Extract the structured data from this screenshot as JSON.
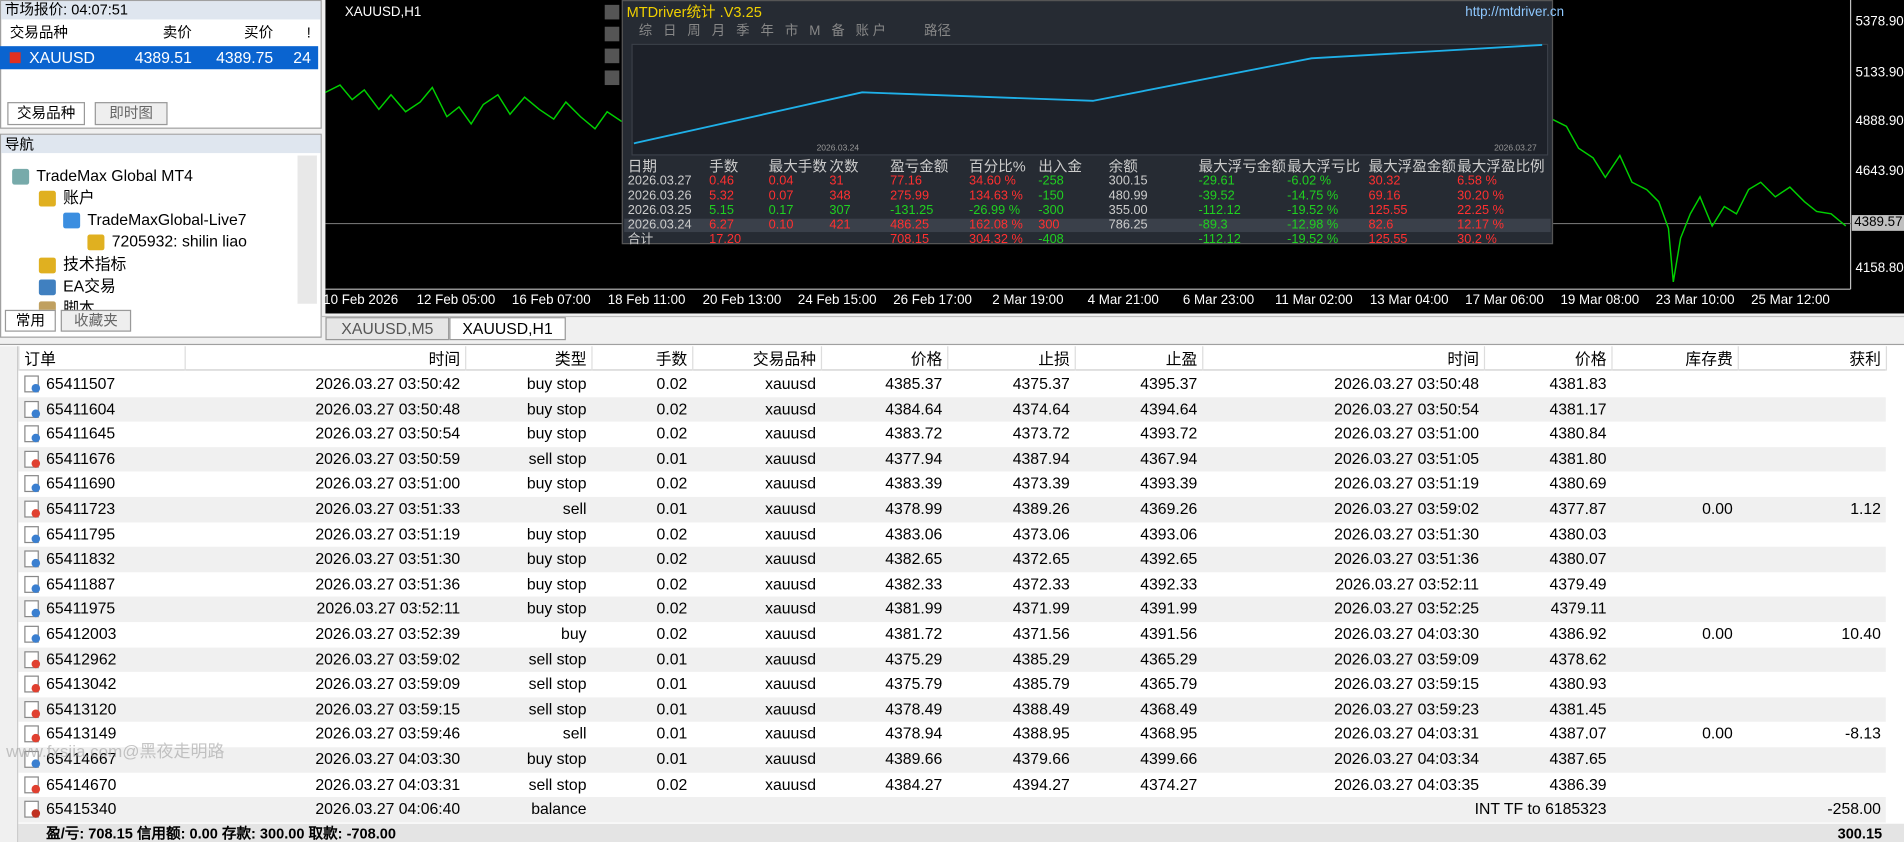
{
  "market_watch": {
    "title": "市场报价: 04:07:51",
    "headers": [
      "交易品种",
      "卖价",
      "买价",
      "!"
    ],
    "row": [
      "XAUUSD",
      "4389.51",
      "4389.75",
      "24"
    ],
    "tabs": [
      "交易品种",
      "即时图"
    ]
  },
  "navigator": {
    "title": "导航",
    "items": [
      "TradeMax Global MT4",
      "账户",
      "TradeMaxGlobal-Live7",
      "7205932: shilin liao",
      "技术指标",
      "EA交易",
      "脚本"
    ],
    "tabs": [
      "常用",
      "收藏夹"
    ]
  },
  "chart": {
    "title": "XAUUSD,H1",
    "price_labels": [
      "5378.90",
      "5133.90",
      "4888.90",
      "4643.90",
      "4158.80"
    ],
    "current_price": "4389.57",
    "time_labels": [
      "10 Feb 2026",
      "12 Feb 05:00",
      "16 Feb 07:00",
      "18 Feb 11:00",
      "20 Feb 13:00",
      "24 Feb 15:00",
      "26 Feb 17:00",
      "2 Mar 19:00",
      "4 Mar 21:00",
      "6 Mar 23:00",
      "11 Mar 02:00",
      "13 Mar 04:00",
      "17 Mar 06:00",
      "19 Mar 08:00",
      "23 Mar 10:00",
      "25 Mar 12:00"
    ],
    "tabs": [
      "XAUUSD,M5",
      "XAUUSD,H1"
    ]
  },
  "stats_panel": {
    "title": "MTDriver统计 .V3.25",
    "url": "http://mtdriver.cn",
    "menu": "综 日 周 月 季 年 市 M 备 账户",
    "path_label": "路径",
    "graph_dates": [
      "2026.03.24",
      "2026.03.27"
    ],
    "headers": [
      "日期",
      "手数",
      "最大手数",
      "次数",
      "盈亏金额",
      "百分比%",
      "出入金",
      "余额",
      "最大浮亏金额",
      "最大浮亏比",
      "最大浮盈金额",
      "最大浮盈比例"
    ],
    "rows": [
      [
        "2026.03.27",
        "0.46",
        "0.04",
        "31",
        "77.16",
        "34.60 %",
        "-258",
        "300.15",
        "-29.61",
        "-6.02 %",
        "30.32",
        "6.58 %"
      ],
      [
        "2026.03.26",
        "5.32",
        "0.07",
        "348",
        "275.99",
        "134.63 %",
        "-150",
        "480.99",
        "-39.52",
        "-14.75 %",
        "69.16",
        "30.20 %"
      ],
      [
        "2026.03.25",
        "5.15",
        "0.17",
        "307",
        "-131.25",
        "-26.99 %",
        "-300",
        "355.00",
        "-112.12",
        "-19.52 %",
        "125.55",
        "22.25 %"
      ],
      [
        "2026.03.24",
        "6.27",
        "0.10",
        "421",
        "486.25",
        "162.08 %",
        "300",
        "786.25",
        "-89.3",
        "-12.98 %",
        "82.6",
        "12.17 %"
      ],
      [
        "合计",
        "17.20",
        null,
        null,
        "708.15",
        "304.32 %",
        "-408",
        null,
        "-112.12",
        "-19.52 %",
        "125.55",
        "30.2 %"
      ]
    ]
  },
  "orders": {
    "headers": [
      "订单",
      "时间",
      "类型",
      "手数",
      "交易品种",
      "价格",
      "止损",
      "止盈",
      "时间",
      "价格",
      "库存费",
      "获利"
    ],
    "rows": [
      [
        "65411507",
        "2026.03.27 03:50:42",
        "buy stop",
        "0.02",
        "xauusd",
        "4385.37",
        "4375.37",
        "4395.37",
        "2026.03.27 03:50:48",
        "4381.83",
        null,
        null
      ],
      [
        "65411604",
        "2026.03.27 03:50:48",
        "buy stop",
        "0.02",
        "xauusd",
        "4384.64",
        "4374.64",
        "4394.64",
        "2026.03.27 03:50:54",
        "4381.17",
        null,
        null
      ],
      [
        "65411645",
        "2026.03.27 03:50:54",
        "buy stop",
        "0.02",
        "xauusd",
        "4383.72",
        "4373.72",
        "4393.72",
        "2026.03.27 03:51:00",
        "4380.84",
        null,
        null
      ],
      [
        "65411676",
        "2026.03.27 03:50:59",
        "sell stop",
        "0.01",
        "xauusd",
        "4377.94",
        "4387.94",
        "4367.94",
        "2026.03.27 03:51:05",
        "4381.80",
        null,
        null
      ],
      [
        "65411690",
        "2026.03.27 03:51:00",
        "buy stop",
        "0.02",
        "xauusd",
        "4383.39",
        "4373.39",
        "4393.39",
        "2026.03.27 03:51:19",
        "4380.69",
        null,
        null
      ],
      [
        "65411723",
        "2026.03.27 03:51:33",
        "sell",
        "0.01",
        "xauusd",
        "4378.99",
        "4389.26",
        "4369.26",
        "2026.03.27 03:59:02",
        "4377.87",
        "0.00",
        "1.12"
      ],
      [
        "65411795",
        "2026.03.27 03:51:19",
        "buy stop",
        "0.02",
        "xauusd",
        "4383.06",
        "4373.06",
        "4393.06",
        "2026.03.27 03:51:30",
        "4380.03",
        null,
        null
      ],
      [
        "65411832",
        "2026.03.27 03:51:30",
        "buy stop",
        "0.02",
        "xauusd",
        "4382.65",
        "4372.65",
        "4392.65",
        "2026.03.27 03:51:36",
        "4380.07",
        null,
        null
      ],
      [
        "65411887",
        "2026.03.27 03:51:36",
        "buy stop",
        "0.02",
        "xauusd",
        "4382.33",
        "4372.33",
        "4392.33",
        "2026.03.27 03:52:11",
        "4379.49",
        null,
        null
      ],
      [
        "65411975",
        "2026.03.27 03:52:11",
        "buy stop",
        "0.02",
        "xauusd",
        "4381.99",
        "4371.99",
        "4391.99",
        "2026.03.27 03:52:25",
        "4379.11",
        null,
        null
      ],
      [
        "65412003",
        "2026.03.27 03:52:39",
        "buy",
        "0.02",
        "xauusd",
        "4381.72",
        "4371.56",
        "4391.56",
        "2026.03.27 04:03:30",
        "4386.92",
        "0.00",
        "10.40"
      ],
      [
        "65412962",
        "2026.03.27 03:59:02",
        "sell stop",
        "0.01",
        "xauusd",
        "4375.29",
        "4385.29",
        "4365.29",
        "2026.03.27 03:59:09",
        "4378.62",
        null,
        null
      ],
      [
        "65413042",
        "2026.03.27 03:59:09",
        "sell stop",
        "0.01",
        "xauusd",
        "4375.79",
        "4385.79",
        "4365.79",
        "2026.03.27 03:59:15",
        "4380.93",
        null,
        null
      ],
      [
        "65413120",
        "2026.03.27 03:59:15",
        "sell stop",
        "0.01",
        "xauusd",
        "4378.49",
        "4388.49",
        "4368.49",
        "2026.03.27 03:59:23",
        "4381.45",
        null,
        null
      ],
      [
        "65413149",
        "2026.03.27 03:59:46",
        "sell",
        "0.01",
        "xauusd",
        "4378.94",
        "4388.95",
        "4368.95",
        "2026.03.27 04:03:31",
        "4387.07",
        "0.00",
        "-8.13"
      ],
      [
        "65414667",
        "2026.03.27 04:03:30",
        "buy stop",
        "0.01",
        "xauusd",
        "4389.66",
        "4379.66",
        "4399.66",
        "2026.03.27 04:03:34",
        "4387.65",
        null,
        null
      ],
      [
        "65414670",
        "2026.03.27 04:03:31",
        "sell stop",
        "0.02",
        "xauusd",
        "4384.27",
        "4394.27",
        "4374.27",
        "2026.03.27 04:03:35",
        "4386.39",
        null,
        null
      ],
      [
        "65415340",
        "2026.03.27 04:06:40",
        "balance",
        null,
        null,
        null,
        null,
        null,
        null,
        "INT TF to 6185323",
        null,
        "-258.00"
      ]
    ]
  },
  "footer": {
    "summary": "盈/亏: 708.15 信用额: 0.00 存款: 300.00 取款: -708.00",
    "balance": "300.15"
  },
  "watermark": "www.fxsjia.com@黑夜走明路"
}
